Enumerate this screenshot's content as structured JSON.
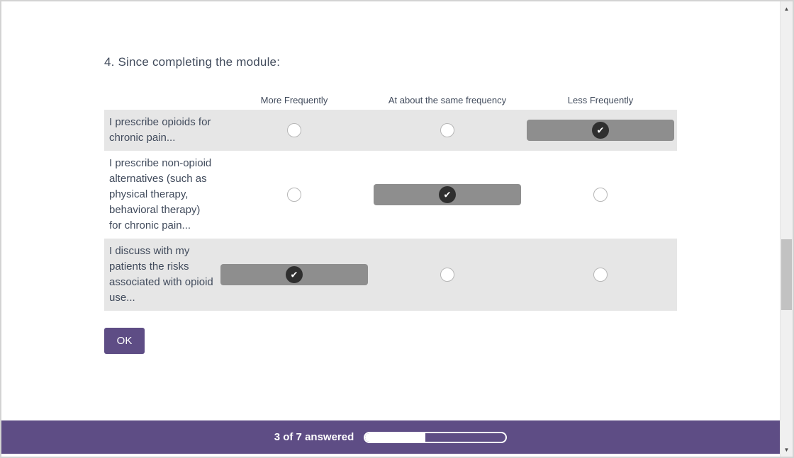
{
  "question": {
    "title": "4. Since completing the module:"
  },
  "matrix": {
    "columns": [
      "More Frequently",
      "At about the same frequency",
      "Less Frequently"
    ],
    "rows": [
      {
        "label": "I prescribe opioids for chronic pain...",
        "selected_column": 2
      },
      {
        "label": "I prescribe non-opioid alternatives (such as physical therapy, behavioral therapy) for chronic pain...",
        "selected_column": 1
      },
      {
        "label": "I discuss with my patients the risks associated with opioid use...",
        "selected_column": 0
      }
    ]
  },
  "buttons": {
    "ok_label": "OK"
  },
  "footer": {
    "progress_text": "3 of 7 answered",
    "answered": 3,
    "total": 7,
    "progress_percent": 43
  },
  "icons": {
    "checkmark": "✔",
    "scroll_up": "▲",
    "scroll_down": "▼"
  },
  "colors": {
    "accent_purple": "#5e4d85",
    "row_highlight": "#e6e6e6",
    "selected_fill": "#8e8e8e",
    "selected_check_bg": "#2f2f2f",
    "text": "#414b5c"
  }
}
